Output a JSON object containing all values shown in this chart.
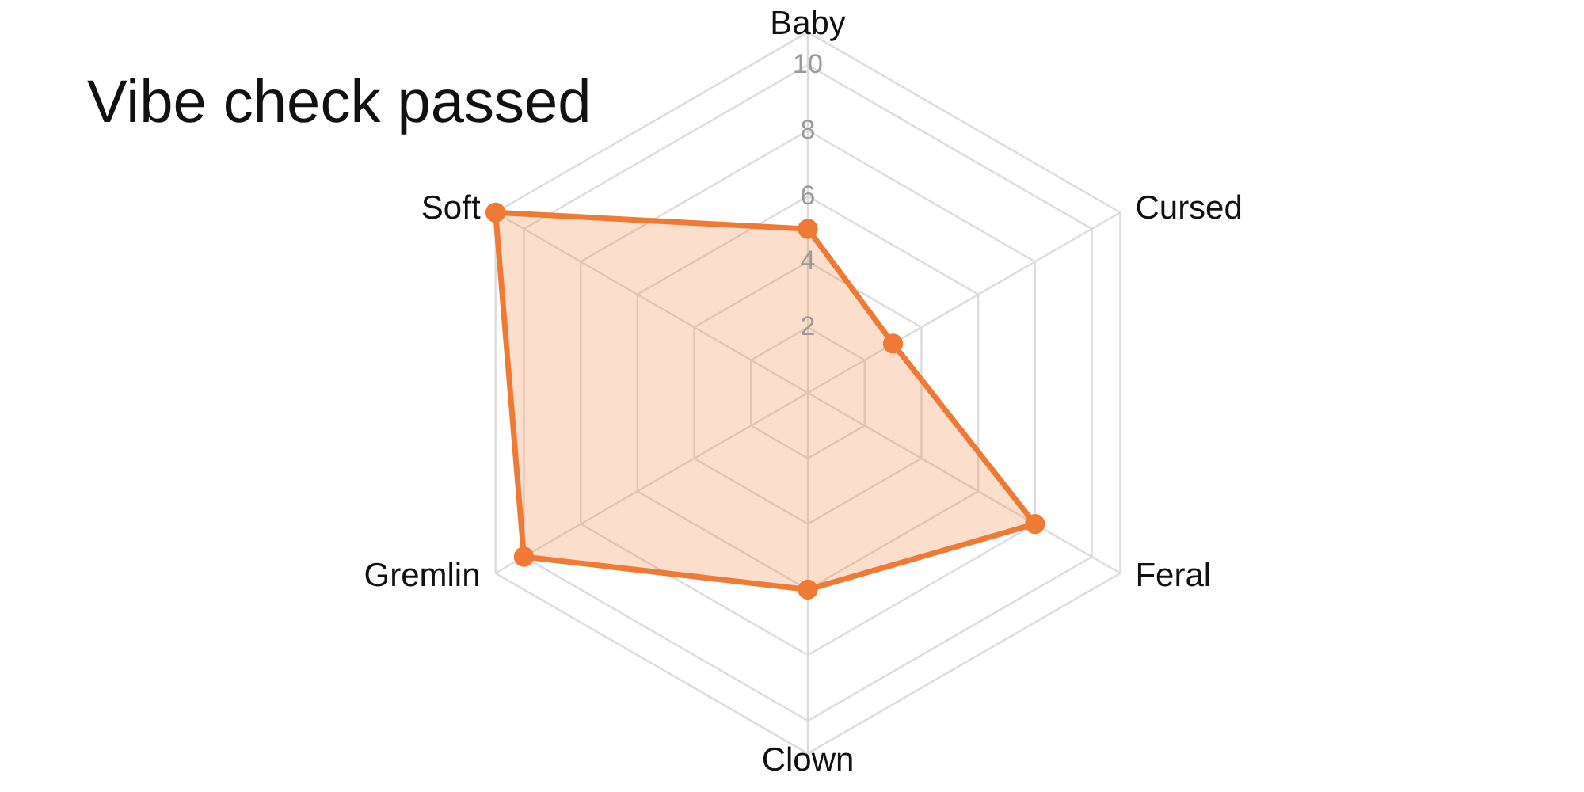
{
  "chart_data": {
    "type": "radar",
    "title": "Vibe check passed",
    "categories": [
      "Baby",
      "Cursed",
      "Feral",
      "Clown",
      "Gremlin",
      "Soft"
    ],
    "series": [
      {
        "color": "#ef7a35",
        "values": [
          5,
          3,
          8,
          6,
          10,
          11
        ]
      }
    ],
    "ylim": [
      0,
      11
    ],
    "yticks": [
      2,
      4,
      6,
      8,
      10
    ],
    "grid": true,
    "marker": "circle",
    "line_style": "solid"
  }
}
